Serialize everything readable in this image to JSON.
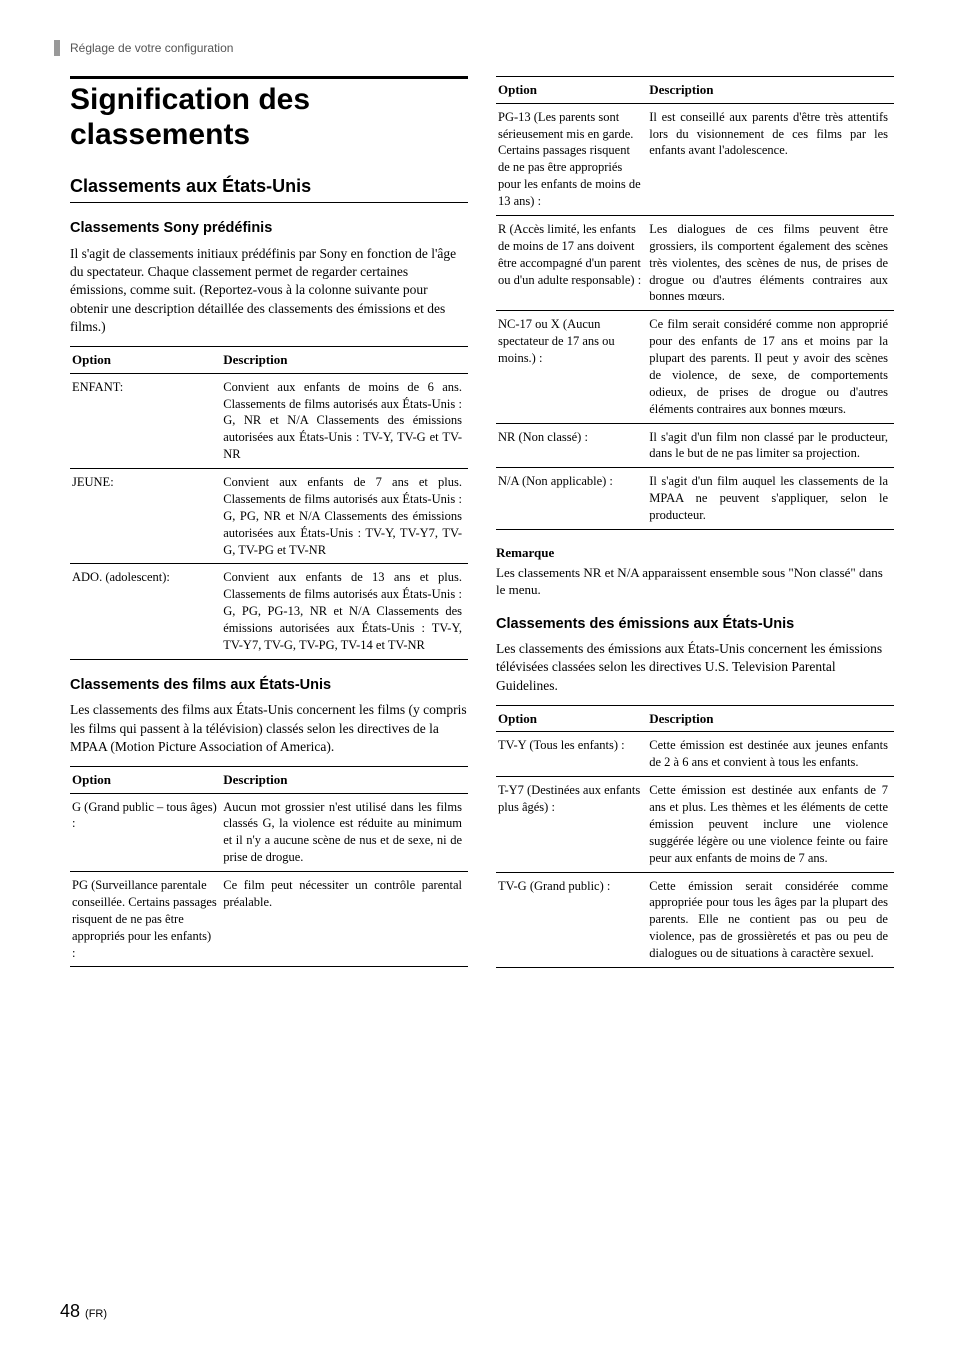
{
  "header": {
    "breadcrumb": "Réglage de votre configuration"
  },
  "left": {
    "title": "Signification des classements",
    "section_us": "Classements aux États-Unis",
    "sony_predef": {
      "heading": "Classements Sony prédéfinis",
      "intro": "Il s'agit de classements initiaux prédéfinis par Sony en fonction de l'âge du spectateur. Chaque classement permet de regarder certaines émissions, comme suit. (Reportez-vous à la colonne suivante pour obtenir une description détaillée des classements des émissions et des films.)",
      "th_option": "Option",
      "th_desc": "Description",
      "rows": [
        {
          "option": "ENFANT:",
          "desc": "Convient aux enfants de moins de 6 ans. Classements de films autorisés aux États-Unis : G, NR et N/A\nClassements des émissions autorisées aux États-Unis : TV-Y, TV-G et TV-NR"
        },
        {
          "option": "JEUNE:",
          "desc": "Convient aux enfants de 7 ans et plus. Classements de films autorisés aux États-Unis : G, PG, NR et N/A\nClassements des émissions autorisées aux États-Unis : TV-Y, TV-Y7, TV-G, TV-PG et TV-NR"
        },
        {
          "option": "ADO. (adolescent):",
          "desc": "Convient aux enfants de 13 ans et plus. Classements de films autorisés aux États-Unis : G, PG, PG-13, NR et N/A Classements des émissions autorisées aux États-Unis : TV-Y, TV-Y7, TV-G, TV-PG, TV-14 et TV-NR"
        }
      ]
    },
    "films": {
      "heading": "Classements des films aux États-Unis",
      "intro": "Les classements des films aux États-Unis concernent les films (y compris les films qui passent à la télévision) classés selon les directives de la MPAA (Motion Picture Association of America).",
      "th_option": "Option",
      "th_desc": "Description",
      "rows": [
        {
          "option": "G (Grand public – tous âges) :",
          "desc": "Aucun mot grossier n'est utilisé dans les films classés G, la violence est réduite au minimum et il n'y a aucune scène de nus et de sexe, ni de prise de drogue."
        },
        {
          "option": "PG (Surveillance parentale conseillée. Certains passages risquent de ne pas être appropriés pour les enfants) :",
          "desc": "Ce film peut nécessiter un contrôle parental préalable."
        }
      ]
    }
  },
  "right": {
    "films2": {
      "th_option": "Option",
      "th_desc": "Description",
      "rows": [
        {
          "option": "PG-13 (Les parents sont sérieusement mis en garde. Certains passages risquent de ne pas être appropriés pour les enfants de moins de 13 ans) :",
          "desc": "Il est conseillé aux parents d'être très attentifs lors du visionnement de ces films par les enfants avant l'adolescence."
        },
        {
          "option": "R (Accès limité, les enfants de moins de 17 ans doivent être accompagné d'un parent ou d'un adulte responsable) :",
          "desc": "Les dialogues de ces films peuvent être grossiers, ils comportent également des scènes très violentes, des scènes de nus, de prises de drogue ou d'autres éléments contraires aux bonnes mœurs."
        },
        {
          "option": "NC-17 ou X (Aucun spectateur de 17 ans ou moins.) :",
          "desc": "Ce film serait considéré comme non approprié pour des enfants de 17 ans et moins par la plupart des parents. Il peut y avoir des scènes de violence, de sexe, de comportements odieux, de prises de drogue ou d'autres éléments contraires aux bonnes mœurs."
        },
        {
          "option": "NR (Non classé) :",
          "desc": "Il s'agit d'un film non classé par le producteur, dans le but de ne pas limiter sa projection."
        },
        {
          "option": "N/A (Non applicable) :",
          "desc": "Il s'agit d'un film auquel les classements de la MPAA ne peuvent s'appliquer, selon le producteur."
        }
      ]
    },
    "remark": {
      "heading": "Remarque",
      "body": "Les classements NR et N/A apparaissent ensemble sous \"Non classé\" dans le menu."
    },
    "tv": {
      "heading": "Classements des émissions aux États-Unis",
      "intro": "Les classements des émissions aux États-Unis concernent les émissions télévisées classées selon les directives U.S. Television Parental Guidelines.",
      "th_option": "Option",
      "th_desc": "Description",
      "rows": [
        {
          "option": "TV-Y (Tous les enfants) :",
          "desc": "Cette émission est destinée aux jeunes enfants de 2 à 6 ans et convient à tous les enfants."
        },
        {
          "option": "T-Y7 (Destinées aux enfants plus âgés) :",
          "desc": "Cette émission est destinée aux enfants de 7 ans et plus. Les thèmes et les éléments de cette émission peuvent inclure une violence suggérée légère ou une violence feinte ou faire peur aux enfants de moins de 7 ans."
        },
        {
          "option": "TV-G (Grand public) :",
          "desc": "Cette émission serait considérée comme appropriée pour tous les âges par la plupart des parents. Elle ne contient pas ou peu de violence, pas de grossièretés et pas ou peu de dialogues ou de situations à caractère sexuel."
        }
      ]
    }
  },
  "footer": {
    "page": "48",
    "lang": "(FR)"
  }
}
